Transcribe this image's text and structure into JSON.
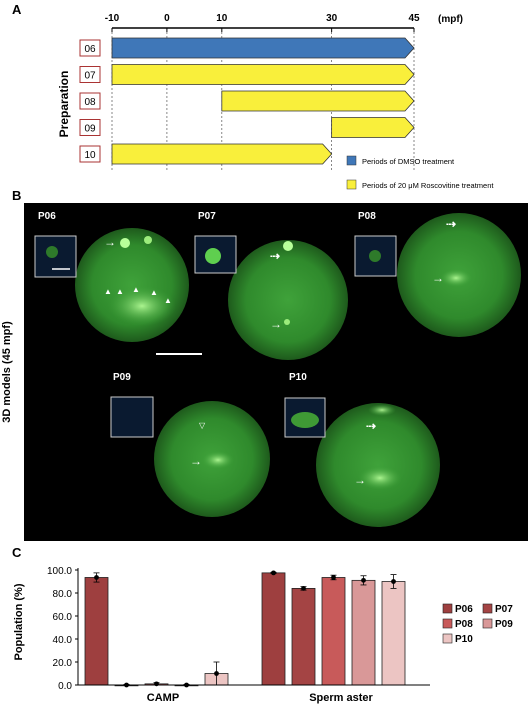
{
  "panelA": {
    "label": "A",
    "unit": "(mpf)",
    "ticks": [
      -10,
      0,
      10,
      30,
      45
    ],
    "ylabel": "Preparation",
    "rows": [
      {
        "id": "06",
        "start": -10,
        "end": 45,
        "treatment": "DMSO"
      },
      {
        "id": "07",
        "start": -10,
        "end": 45,
        "treatment": "Roscovitine"
      },
      {
        "id": "08",
        "start": 10,
        "end": 45,
        "treatment": "Roscovitine"
      },
      {
        "id": "09",
        "start": 30,
        "end": 45,
        "treatment": "Roscovitine"
      },
      {
        "id": "10",
        "start": -10,
        "end": 30,
        "treatment": "Roscovitine"
      }
    ],
    "legend": [
      {
        "label": "Periods of DMSO treatment",
        "color": "#3f77b8"
      },
      {
        "label": "Periods of 20 μM Roscovitine treatment",
        "color": "#f9ef3b"
      }
    ]
  },
  "panelB": {
    "label": "B",
    "ylabel": "3D models (45 mpf)",
    "embryos": [
      "P06",
      "P07",
      "P08",
      "P09",
      "P10"
    ]
  },
  "panelC": {
    "label": "C",
    "chart_data": {
      "type": "bar",
      "categories": [
        "CAMP",
        "Sperm aster"
      ],
      "ylabel": "Population (%)",
      "ylim": [
        0,
        100
      ],
      "yticks": [
        "0.0",
        "20.0",
        "40.0",
        "60.0",
        "80.0",
        "100.0"
      ],
      "series": [
        {
          "name": "P06",
          "color": "#9e3f3f",
          "values": [
            93.5,
            97.5
          ],
          "err": [
            4,
            0.5
          ]
        },
        {
          "name": "P07",
          "color": "#a44444",
          "values": [
            0,
            84
          ],
          "err": [
            0.5,
            1.5
          ]
        },
        {
          "name": "P08",
          "color": "#c85a5a",
          "values": [
            1,
            93.5
          ],
          "err": [
            1,
            2
          ]
        },
        {
          "name": "P09",
          "color": "#d99898",
          "values": [
            0,
            91
          ],
          "err": [
            0.5,
            4
          ]
        },
        {
          "name": "P10",
          "color": "#ecc5c3",
          "values": [
            10,
            90
          ],
          "err": [
            10,
            6
          ]
        }
      ],
      "legend_position": "right"
    }
  }
}
